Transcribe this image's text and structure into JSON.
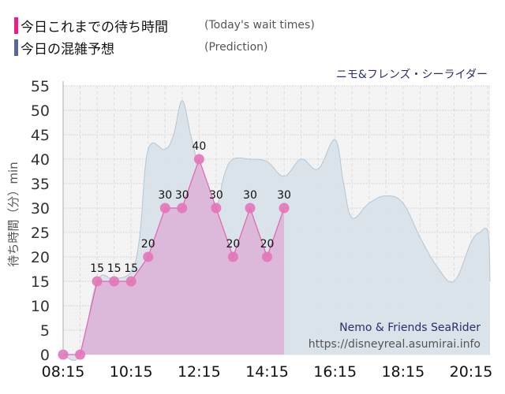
{
  "legend": {
    "items": [
      {
        "label_jp": "今日これまでの待ち時間",
        "label_en": "(Today's wait times)",
        "color": "#e91e8c"
      },
      {
        "label_jp": "今日の混雑予想",
        "label_en": "(Prediction)",
        "color": "#5a6792"
      }
    ]
  },
  "ride_title": "ニモ&フレンズ・シーライダー",
  "watermark": {
    "name": "Nemo & Friends SeaRider",
    "url": "https://disneyreal.asumirai.info"
  },
  "chart_data": {
    "type": "area",
    "title": "ニモ&フレンズ・シーライダー",
    "xlabel": "",
    "ylabel": "待ち時間（分）min",
    "ylim": [
      0,
      55
    ],
    "yticks": [
      0,
      5,
      10,
      15,
      20,
      25,
      30,
      35,
      40,
      45,
      50,
      55
    ],
    "xticks": [
      "08:15",
      "10:15",
      "12:15",
      "14:15",
      "16:15",
      "18:15",
      "20:15"
    ],
    "grid": true,
    "legend_position": "top-left",
    "series": [
      {
        "name": "今日これまでの待ち時間 (Today's wait times)",
        "color": "#e066b0",
        "fill": "#dcb4d8",
        "markers": true,
        "data_labels": true,
        "x": [
          "08:15",
          "08:45",
          "09:15",
          "09:45",
          "10:15",
          "10:45",
          "11:15",
          "11:45",
          "12:15",
          "12:45",
          "13:15",
          "13:45",
          "14:15",
          "14:45"
        ],
        "values": [
          0,
          0,
          15,
          15,
          15,
          20,
          30,
          30,
          40,
          30,
          20,
          30,
          20,
          30
        ]
      },
      {
        "name": "今日の混雑予想 (Prediction)",
        "color": "#b7c6d3",
        "fill": "#d7e1e8",
        "markers": false,
        "x": [
          "08:15",
          "08:45",
          "09:15",
          "09:45",
          "10:15",
          "10:30",
          "10:45",
          "11:15",
          "11:30",
          "11:45",
          "12:00",
          "12:15",
          "12:30",
          "12:45",
          "13:00",
          "13:15",
          "13:45",
          "14:15",
          "14:45",
          "15:15",
          "15:45",
          "16:15",
          "16:30",
          "16:45",
          "17:15",
          "17:45",
          "18:15",
          "18:45",
          "19:15",
          "19:45",
          "20:15",
          "20:30",
          "20:45",
          "21:00"
        ],
        "values": [
          0,
          0,
          15,
          15.5,
          17,
          24,
          42,
          42,
          45,
          52,
          45,
          38,
          33,
          30,
          37,
          40,
          40,
          39.5,
          36.5,
          40,
          38,
          44,
          35,
          28,
          31,
          32.5,
          31,
          24,
          18,
          15,
          23,
          25,
          25,
          15
        ]
      }
    ]
  }
}
